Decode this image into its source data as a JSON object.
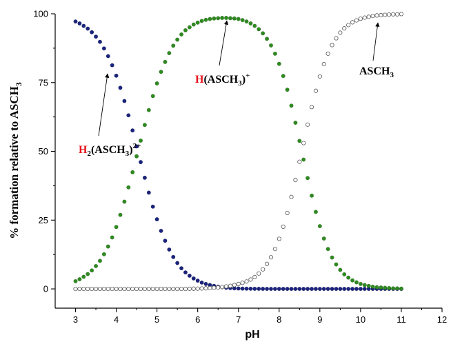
{
  "chart_data": {
    "type": "scatter",
    "xlabel": "pH",
    "ylabel_parts": {
      "main": "% formation relative to ASCH",
      "sub": "3"
    },
    "xlim": [
      2.5,
      12
    ],
    "ylim": [
      -7,
      100
    ],
    "xticks": [
      3,
      4,
      5,
      6,
      7,
      8,
      9,
      10,
      11,
      12
    ],
    "yticks": [
      0,
      25,
      50,
      75,
      100
    ],
    "grid": false,
    "series": [
      {
        "key": "h2",
        "marker": "filled",
        "color": "#1a237e",
        "x": [
          3.0,
          3.1,
          3.2,
          3.3,
          3.4,
          3.5,
          3.6,
          3.7,
          3.8,
          3.9,
          4.0,
          4.1,
          4.2,
          4.3,
          4.4,
          4.5,
          4.6,
          4.7,
          4.8,
          4.9,
          5.0,
          5.1,
          5.2,
          5.3,
          5.4,
          5.5,
          5.6,
          5.7,
          5.8,
          5.9,
          6.0,
          6.1,
          6.2,
          6.3,
          6.4,
          6.5,
          6.6,
          6.7,
          6.8,
          6.9,
          7.0,
          7.1,
          7.2,
          7.3,
          7.4,
          7.5,
          7.6,
          7.7,
          7.8,
          7.9,
          8.0,
          8.1,
          8.2,
          8.3,
          8.4,
          8.5,
          8.6,
          8.7,
          8.8,
          8.9,
          9.0,
          9.1,
          9.2,
          9.3,
          9.4,
          9.5,
          9.6,
          9.7,
          9.8,
          9.9,
          10.0,
          10.1,
          10.2,
          10.3,
          10.4,
          10.5,
          10.6,
          10.7,
          10.8,
          10.9,
          11.0
        ],
        "values": [
          97.2,
          96.5,
          95.6,
          94.6,
          93.3,
          91.7,
          89.8,
          87.4,
          84.6,
          81.3,
          77.5,
          73.1,
          68.3,
          63.1,
          57.6,
          51.8,
          46.1,
          40.4,
          35.0,
          29.9,
          25.3,
          21.1,
          17.5,
          14.3,
          11.6,
          9.4,
          7.5,
          6.0,
          4.8,
          3.8,
          3.0,
          2.3,
          1.8,
          1.4,
          1.1,
          0.8,
          0.6,
          0.4,
          0.3,
          0.2,
          0.15,
          0.1,
          0.08,
          0.06,
          0.04,
          0.03,
          0.02,
          0.01,
          0,
          0,
          0,
          0,
          0,
          0,
          0,
          0,
          0,
          0,
          0,
          0,
          0,
          0,
          0,
          0,
          0,
          0,
          0,
          0,
          0,
          0,
          0,
          0,
          0,
          0,
          0,
          0,
          0,
          0,
          0,
          0,
          0
        ]
      },
      {
        "key": "h1",
        "marker": "filled",
        "color": "#2e8b1f",
        "x": [
          3.0,
          3.1,
          3.2,
          3.3,
          3.4,
          3.5,
          3.6,
          3.7,
          3.8,
          3.9,
          4.0,
          4.1,
          4.2,
          4.3,
          4.4,
          4.5,
          4.6,
          4.7,
          4.8,
          4.9,
          5.0,
          5.1,
          5.2,
          5.3,
          5.4,
          5.5,
          5.6,
          5.7,
          5.8,
          5.9,
          6.0,
          6.1,
          6.2,
          6.3,
          6.4,
          6.5,
          6.6,
          6.7,
          6.8,
          6.9,
          7.0,
          7.1,
          7.2,
          7.3,
          7.4,
          7.5,
          7.6,
          7.7,
          7.8,
          7.9,
          8.0,
          8.1,
          8.2,
          8.3,
          8.4,
          8.5,
          8.6,
          8.7,
          8.8,
          8.9,
          9.0,
          9.1,
          9.2,
          9.3,
          9.4,
          9.5,
          9.6,
          9.7,
          9.8,
          9.9,
          10.0,
          10.1,
          10.2,
          10.3,
          10.4,
          10.5,
          10.6,
          10.7,
          10.8,
          10.9,
          11.0
        ],
        "values": [
          2.8,
          3.5,
          4.4,
          5.4,
          6.7,
          8.3,
          10.2,
          12.6,
          15.4,
          18.7,
          22.5,
          26.9,
          31.7,
          36.9,
          42.4,
          48.2,
          53.9,
          59.6,
          65.0,
          70.1,
          74.7,
          78.9,
          82.5,
          85.7,
          88.4,
          90.6,
          92.5,
          94.0,
          95.1,
          96.1,
          96.8,
          97.4,
          97.8,
          98.1,
          98.3,
          98.4,
          98.5,
          98.5,
          98.4,
          98.3,
          98.1,
          97.7,
          97.2,
          96.5,
          95.6,
          94.4,
          92.9,
          90.9,
          88.5,
          85.5,
          81.8,
          77.4,
          72.4,
          66.6,
          60.4,
          53.8,
          47.0,
          40.3,
          33.9,
          28.0,
          22.8,
          18.3,
          14.5,
          11.4,
          8.9,
          6.9,
          5.3,
          4.1,
          3.1,
          2.4,
          1.8,
          1.4,
          1.1,
          0.8,
          0.6,
          0.5,
          0.4,
          0.3,
          0.2,
          0.2,
          0.1
        ]
      },
      {
        "key": "free",
        "marker": "open",
        "color": "#555555",
        "x": [
          3.0,
          3.1,
          3.2,
          3.3,
          3.4,
          3.5,
          3.6,
          3.7,
          3.8,
          3.9,
          4.0,
          4.1,
          4.2,
          4.3,
          4.4,
          4.5,
          4.6,
          4.7,
          4.8,
          4.9,
          5.0,
          5.1,
          5.2,
          5.3,
          5.4,
          5.5,
          5.6,
          5.7,
          5.8,
          5.9,
          6.0,
          6.1,
          6.2,
          6.3,
          6.4,
          6.5,
          6.6,
          6.7,
          6.8,
          6.9,
          7.0,
          7.1,
          7.2,
          7.3,
          7.4,
          7.5,
          7.6,
          7.7,
          7.8,
          7.9,
          8.0,
          8.1,
          8.2,
          8.3,
          8.4,
          8.5,
          8.6,
          8.7,
          8.8,
          8.9,
          9.0,
          9.1,
          9.2,
          9.3,
          9.4,
          9.5,
          9.6,
          9.7,
          9.8,
          9.9,
          10.0,
          10.1,
          10.2,
          10.3,
          10.4,
          10.5,
          10.6,
          10.7,
          10.8,
          10.9,
          11.0
        ],
        "values": [
          0,
          0,
          0,
          0,
          0,
          0,
          0,
          0,
          0,
          0,
          0,
          0,
          0,
          0,
          0,
          0,
          0,
          0,
          0,
          0,
          0,
          0,
          0,
          0,
          0,
          0,
          0,
          0,
          0.05,
          0.08,
          0.1,
          0.15,
          0.2,
          0.3,
          0.4,
          0.5,
          0.7,
          0.9,
          1.1,
          1.4,
          1.8,
          2.2,
          2.7,
          3.4,
          4.3,
          5.6,
          7.1,
          9.1,
          11.5,
          14.5,
          18.2,
          22.6,
          27.6,
          33.4,
          39.6,
          46.2,
          53.0,
          59.7,
          66.1,
          72.0,
          77.2,
          81.7,
          85.5,
          88.6,
          91.1,
          93.1,
          94.7,
          95.9,
          96.9,
          97.6,
          98.2,
          98.6,
          98.9,
          99.2,
          99.4,
          99.5,
          99.6,
          99.7,
          99.8,
          99.8,
          99.9
        ]
      }
    ],
    "annotations": [
      {
        "key": "h2",
        "hl": "H",
        "sub1": "2",
        "mid": "(ASCH",
        "sub2": "3",
        "close": ")",
        "sup": "2+",
        "point": [
          3.85,
          82
        ]
      },
      {
        "key": "h1",
        "hl": "H",
        "mid": "(ASCH",
        "sub2": "3",
        "close": ")",
        "sup": "+",
        "point": [
          6.5,
          97
        ]
      },
      {
        "key": "free",
        "mid": "ASCH",
        "sub2": "3",
        "point": [
          10.55,
          98
        ]
      }
    ]
  }
}
